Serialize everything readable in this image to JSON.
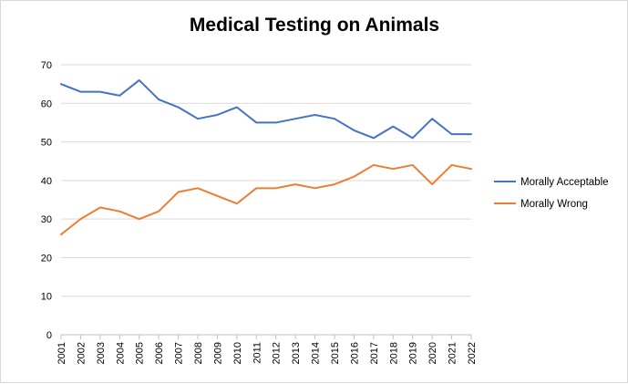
{
  "chart_data": {
    "type": "line",
    "title": "Medical Testing on Animals",
    "xlabel": "",
    "ylabel": "",
    "x": [
      "2001",
      "2002",
      "2003",
      "2004",
      "2005",
      "2006",
      "2007",
      "2008",
      "2009",
      "2010",
      "2011",
      "2012",
      "2013",
      "2014",
      "2015",
      "2016",
      "2017",
      "2018",
      "2019",
      "2020",
      "2021",
      "2022"
    ],
    "ylim": [
      0,
      70
    ],
    "yticks": [
      "0",
      "10",
      "20",
      "30",
      "40",
      "50",
      "60",
      "70"
    ],
    "grid": "horizontal",
    "legend_position": "right",
    "series": [
      {
        "name": "Morally Acceptable",
        "color": "#4472c4",
        "values": [
          65,
          63,
          63,
          62,
          66,
          61,
          59,
          56,
          57,
          59,
          55,
          55,
          56,
          57,
          56,
          53,
          51,
          54,
          51,
          56,
          52,
          52
        ]
      },
      {
        "name": "Morally Wrong",
        "color": "#ed7d31",
        "values": [
          26,
          30,
          33,
          32,
          30,
          32,
          37,
          38,
          36,
          34,
          38,
          38,
          39,
          38,
          39,
          41,
          44,
          43,
          44,
          39,
          44,
          43
        ]
      }
    ]
  }
}
